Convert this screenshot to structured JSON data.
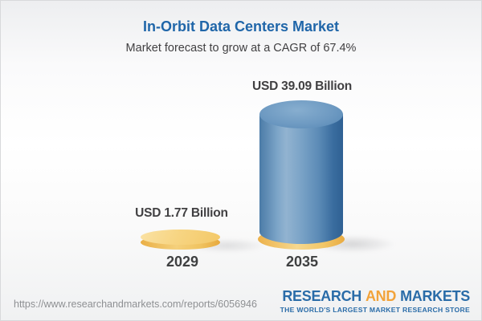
{
  "chart_data": {
    "type": "bar",
    "style": "3d-cylinder",
    "title": "In-Orbit Data Centers Market",
    "subtitle": "Market forecast to grow at a CAGR of 67.4%",
    "cagr_percent": 67.4,
    "unit": "USD Billion",
    "categories": [
      "2029",
      "2035"
    ],
    "values": [
      1.77,
      39.09
    ],
    "value_labels": [
      "USD 1.77 Billion",
      "USD 39.09 Billion"
    ],
    "legend": "none",
    "grid": false,
    "axes": "none",
    "bar_colors": [
      "#f6d27c",
      "#6e9ac2"
    ],
    "bar_base_color": "#f3c968"
  },
  "colors": {
    "title_blue": "#2066a9",
    "text_dark": "#414042",
    "url_gray": "#8e9093",
    "brand_blue": "#2a6ca8",
    "brand_orange": "#f2a33a"
  },
  "footer": {
    "url": "https://www.researchandmarkets.com/reports/6056946",
    "logo": {
      "part1": "RESEARCH",
      "part2": "AND",
      "part3": "MARKETS",
      "tagline": "THE WORLD'S LARGEST MARKET RESEARCH STORE"
    }
  }
}
